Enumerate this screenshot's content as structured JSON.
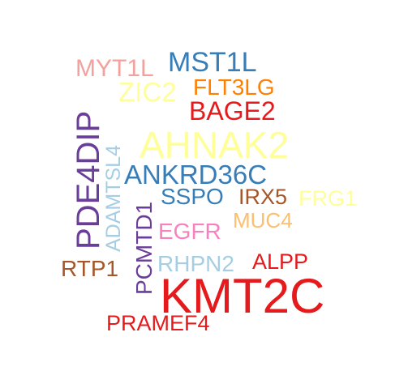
{
  "word_cloud": {
    "words": [
      {
        "text": "KMT2C",
        "color": "#e41a1c"
      },
      {
        "text": "AHNAK2",
        "color": "#ffff99"
      },
      {
        "text": "PDE4DIP",
        "color": "#6a3d9a"
      },
      {
        "text": "ANKRD36C",
        "color": "#377eb8"
      },
      {
        "text": "MST1L",
        "color": "#377eb8"
      },
      {
        "text": "BAGE2",
        "color": "#e41a1c"
      },
      {
        "text": "ZIC2",
        "color": "#ffff99"
      },
      {
        "text": "FLT3LG",
        "color": "#ff7f00"
      },
      {
        "text": "MYT1L",
        "color": "#f4a09c"
      },
      {
        "text": "ADAMTSL4",
        "color": "#a6cee3"
      },
      {
        "text": "PCMTD1",
        "color": "#6a3d9a"
      },
      {
        "text": "SSPO",
        "color": "#377eb8"
      },
      {
        "text": "IRX5",
        "color": "#a65628"
      },
      {
        "text": "FRG1",
        "color": "#ffff99"
      },
      {
        "text": "MUC4",
        "color": "#fdbf6f"
      },
      {
        "text": "EGFR",
        "color": "#f781bf"
      },
      {
        "text": "RHPN2",
        "color": "#a6cee3"
      },
      {
        "text": "ALPP",
        "color": "#e41a1c"
      },
      {
        "text": "RTP1",
        "color": "#a65628"
      },
      {
        "text": "PRAMEF4",
        "color": "#e41a1c"
      }
    ]
  }
}
